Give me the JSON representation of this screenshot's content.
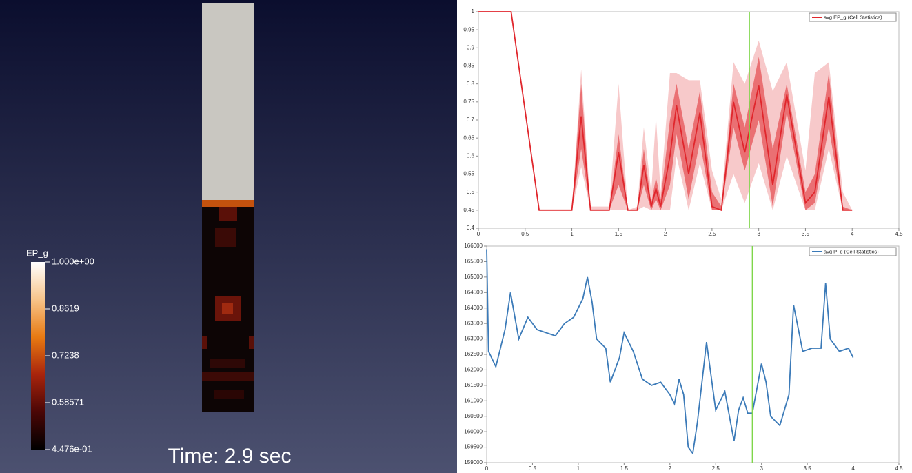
{
  "time_label": "Time: 2.9 sec",
  "colorbar": {
    "title": "EP_g",
    "range": [
      0.4476,
      1
    ],
    "ticks": [
      {
        "value": 1,
        "label": "1.000e+00"
      },
      0.8619,
      0.7238,
      0.58571,
      {
        "value": 0.4476,
        "label": "4.476e-01"
      }
    ]
  },
  "chart_data": [
    {
      "type": "line",
      "legend": "top-right",
      "marker_x": 2.9,
      "marker_color": "#7fd64a",
      "xlim": [
        0,
        4.5
      ],
      "xticks": [
        0,
        0.5,
        1,
        1.5,
        2,
        2.5,
        3,
        3.5,
        4,
        4.5
      ],
      "ylim": [
        0.4,
        1
      ],
      "yticks": [
        0.4,
        0.45,
        0.5,
        0.55,
        0.6,
        0.65,
        0.7,
        0.75,
        0.8,
        0.85,
        0.9,
        0.95,
        1
      ],
      "x": [
        0,
        0.35,
        0.65,
        1.0,
        1.1,
        1.2,
        1.4,
        1.5,
        1.6,
        1.7,
        1.77,
        1.85,
        1.9,
        1.95,
        2.05,
        2.12,
        2.25,
        2.37,
        2.5,
        2.6,
        2.73,
        2.85,
        3.0,
        3.15,
        3.3,
        3.5,
        3.6,
        3.75,
        3.9,
        4.0
      ],
      "series": [
        {
          "name": "avg EP_g (Cell Statistics)",
          "color": "#e0262c",
          "values": [
            1,
            1,
            0.45,
            0.45,
            0.71,
            0.45,
            0.45,
            0.61,
            0.45,
            0.45,
            0.575,
            0.46,
            0.51,
            0.46,
            0.6,
            0.74,
            0.55,
            0.72,
            0.46,
            0.45,
            0.75,
            0.61,
            0.795,
            0.52,
            0.77,
            0.47,
            0.5,
            0.765,
            0.45,
            0.45
          ],
          "inner_upper": [
            1,
            1,
            0.45,
            0.45,
            0.8,
            0.45,
            0.45,
            0.66,
            0.45,
            0.45,
            0.62,
            0.47,
            0.54,
            0.48,
            0.7,
            0.8,
            0.62,
            0.78,
            0.5,
            0.46,
            0.8,
            0.68,
            0.875,
            0.62,
            0.8,
            0.5,
            0.55,
            0.83,
            0.46,
            0.45
          ],
          "inner_lower": [
            1,
            1,
            0.45,
            0.45,
            0.62,
            0.45,
            0.45,
            0.52,
            0.45,
            0.45,
            0.52,
            0.45,
            0.48,
            0.45,
            0.52,
            0.66,
            0.48,
            0.64,
            0.45,
            0.45,
            0.68,
            0.56,
            0.7,
            0.46,
            0.72,
            0.45,
            0.47,
            0.68,
            0.45,
            0.45
          ],
          "outer_upper": [
            1,
            1,
            0.45,
            0.45,
            0.84,
            0.46,
            0.46,
            0.8,
            0.45,
            0.46,
            0.68,
            0.5,
            0.71,
            0.5,
            0.83,
            0.83,
            0.81,
            0.81,
            0.56,
            0.48,
            0.86,
            0.8,
            0.92,
            0.78,
            0.86,
            0.56,
            0.83,
            0.86,
            0.5,
            0.45
          ],
          "outer_lower": [
            1,
            1,
            0.45,
            0.45,
            0.57,
            0.45,
            0.45,
            0.45,
            0.45,
            0.45,
            0.46,
            0.45,
            0.45,
            0.45,
            0.45,
            0.6,
            0.45,
            0.58,
            0.45,
            0.45,
            0.55,
            0.47,
            0.58,
            0.45,
            0.6,
            0.45,
            0.45,
            0.62,
            0.45,
            0.45
          ]
        }
      ]
    },
    {
      "type": "line",
      "legend": "top-right",
      "marker_x": 2.9,
      "marker_color": "#7fd64a",
      "xlim": [
        0,
        4.5
      ],
      "xticks": [
        0,
        0.5,
        1,
        1.5,
        2,
        2.5,
        3,
        3.5,
        4,
        4.5
      ],
      "ylim": [
        159000,
        166000
      ],
      "yticks": [
        159000,
        159500,
        160000,
        160500,
        161000,
        161500,
        162000,
        162500,
        163000,
        163500,
        164000,
        164500,
        165000,
        165500,
        166000
      ],
      "x": [
        0,
        0.02,
        0.1,
        0.2,
        0.26,
        0.35,
        0.45,
        0.55,
        0.65,
        0.75,
        0.85,
        0.95,
        1.05,
        1.1,
        1.15,
        1.2,
        1.3,
        1.35,
        1.45,
        1.5,
        1.6,
        1.7,
        1.8,
        1.9,
        2.0,
        2.05,
        2.1,
        2.15,
        2.2,
        2.25,
        2.3,
        2.4,
        2.5,
        2.6,
        2.7,
        2.75,
        2.8,
        2.85,
        2.9,
        3.0,
        3.05,
        3.1,
        3.2,
        3.3,
        3.35,
        3.45,
        3.55,
        3.65,
        3.7,
        3.75,
        3.85,
        3.95,
        4.0
      ],
      "series": [
        {
          "name": "avg P_g (Cell Statistics)",
          "color": "#3b7ab8",
          "values": [
            165900,
            162600,
            162100,
            163300,
            164500,
            163000,
            163700,
            163300,
            163200,
            163100,
            163500,
            163700,
            164300,
            165000,
            164200,
            163000,
            162700,
            161600,
            162400,
            163200,
            162600,
            161700,
            161500,
            161600,
            161200,
            160900,
            161700,
            161200,
            159500,
            159300,
            160300,
            162900,
            160700,
            161300,
            159700,
            160700,
            161100,
            160600,
            160600,
            162200,
            161600,
            160500,
            160200,
            161200,
            164100,
            162600,
            162700,
            162700,
            164800,
            163000,
            162600,
            162700,
            162400
          ]
        }
      ]
    }
  ]
}
